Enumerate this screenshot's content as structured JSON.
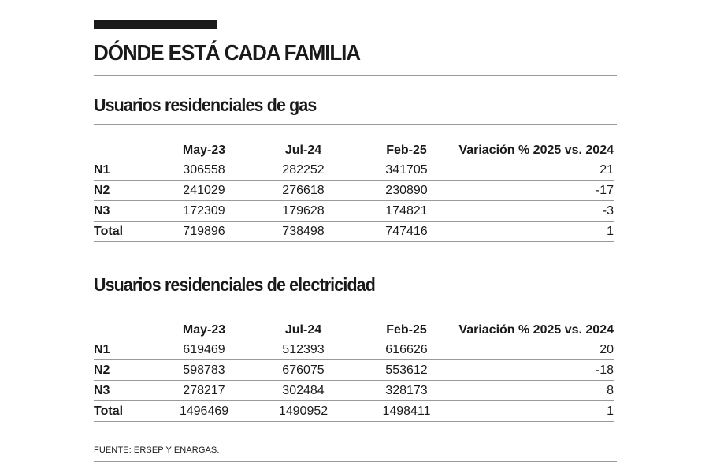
{
  "title": "DÓNDE ESTÁ CADA FAMILIA",
  "columns": [
    "May-23",
    "Jul-24",
    "Feb-25",
    "Variación % 2025 vs. 2024"
  ],
  "sections": [
    {
      "title": "Usuarios residenciales de gas",
      "rows": [
        {
          "label": "N1",
          "may23": "306558",
          "jul24": "282252",
          "feb25": "341705",
          "var": "21"
        },
        {
          "label": "N2",
          "may23": "241029",
          "jul24": "276618",
          "feb25": "230890",
          "var": "-17"
        },
        {
          "label": "N3",
          "may23": "172309",
          "jul24": "179628",
          "feb25": "174821",
          "var": "-3"
        },
        {
          "label": "Total",
          "may23": "719896",
          "jul24": "738498",
          "feb25": "747416",
          "var": "1"
        }
      ]
    },
    {
      "title": "Usuarios residenciales de electricidad",
      "rows": [
        {
          "label": "N1",
          "may23": "619469",
          "jul24": "512393",
          "feb25": "616626",
          "var": "20"
        },
        {
          "label": "N2",
          "may23": "598783",
          "jul24": "676075",
          "feb25": "553612",
          "var": "-18"
        },
        {
          "label": "N3",
          "may23": "278217",
          "jul24": "302484",
          "feb25": "328173",
          "var": "8"
        },
        {
          "label": "Total",
          "may23": "1496469",
          "jul24": "1490952",
          "feb25": "1498411",
          "var": "1"
        }
      ]
    }
  ],
  "source": "FUENTE: ERSEP Y ENARGAS."
}
